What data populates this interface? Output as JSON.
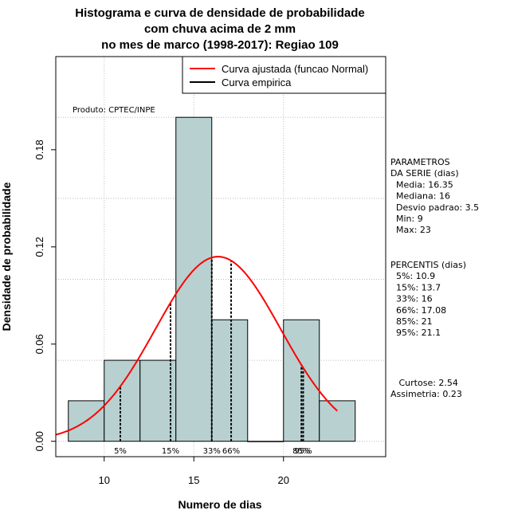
{
  "chart_data": {
    "type": "bar",
    "title_lines": [
      "Histograma e curva de densidade de probabilidade",
      "com chuva acima de 2 mm",
      "no mes de marco (1998-2017): Regiao 109"
    ],
    "xlabel": "Numero de dias",
    "ylabel": "Densidade de probabilidade",
    "xlim": [
      7.3,
      25.7
    ],
    "ylim": [
      -0.0095,
      0.2375
    ],
    "x_ticks": [
      10,
      15,
      20
    ],
    "y_ticks": [
      0.0,
      0.06,
      0.12,
      0.18
    ],
    "y_tick_labels": [
      "0.00",
      "0.06",
      "0.12",
      "0.18"
    ],
    "grid": true,
    "bins": [
      {
        "start": 8,
        "end": 10,
        "density": 0.025
      },
      {
        "start": 10,
        "end": 12,
        "density": 0.05
      },
      {
        "start": 12,
        "end": 14,
        "density": 0.05
      },
      {
        "start": 14,
        "end": 16,
        "density": 0.2
      },
      {
        "start": 16,
        "end": 18,
        "density": 0.075
      },
      {
        "start": 18,
        "end": 20,
        "density": 0
      },
      {
        "start": 20,
        "end": 22,
        "density": 0.075
      },
      {
        "start": 22,
        "end": 24,
        "density": 0.025
      }
    ],
    "bar_color": "#b8d0d0",
    "normal_curve": {
      "mean": 16.35,
      "sd": 3.5,
      "x_from": 7.3,
      "x_to": 23.0,
      "color": "#ff0000"
    },
    "percentile_lines": [
      {
        "label": "5%",
        "x": 10.9
      },
      {
        "label": "15%",
        "x": 13.7
      },
      {
        "label": "33%",
        "x": 16
      },
      {
        "label": "66%",
        "x": 17.08
      },
      {
        "label": "85%",
        "x": 21
      },
      {
        "label": "95%",
        "x": 21.1
      }
    ],
    "legend": {
      "position": "top-right",
      "entries": [
        {
          "label": "Curva ajustada (funcao Normal)",
          "color": "#ff0000"
        },
        {
          "label": "Curva empirica",
          "color": "#000000"
        }
      ]
    },
    "credit": "Produto: CPTEC/INPE"
  },
  "side_panel": {
    "params_lines": [
      "PARAMETROS",
      "DA SERIE (dias)",
      "  Media: 16.35",
      "  Mediana: 16",
      "  Desvio padrao: 3.5",
      "  Min: 9",
      "  Max: 23"
    ],
    "percentile_lines": [
      "PERCENTIS (dias)",
      "  5%: 10.9",
      "  15%: 13.7",
      "  33%: 16",
      "  66%: 17.08",
      "  85%: 21",
      "  95%: 21.1"
    ],
    "stats_lines": [
      "   Curtose: 2.54",
      "Assimetria: 0.23"
    ]
  }
}
